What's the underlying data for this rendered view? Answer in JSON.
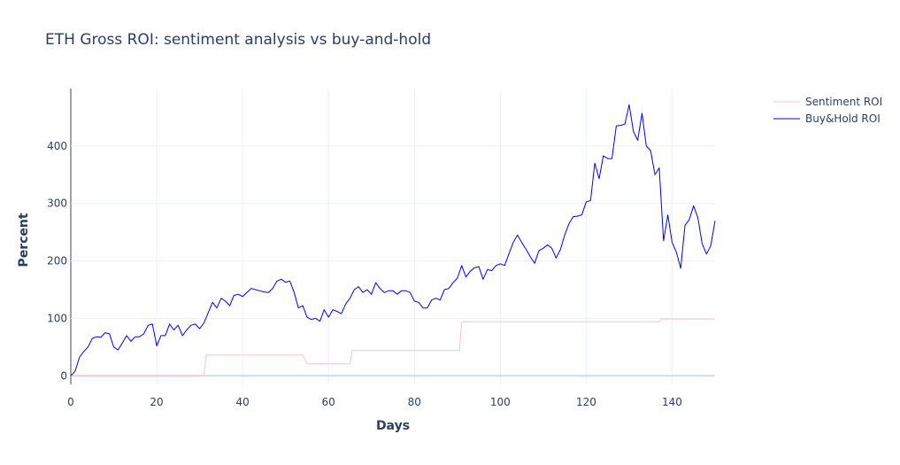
{
  "chart_data": {
    "type": "line",
    "title": "ETH Gross ROI: sentiment analysis vs buy-and-hold",
    "xlabel": "Days",
    "ylabel": "Percent",
    "xlim": [
      0,
      150
    ],
    "ylim": [
      -15,
      500
    ],
    "xticks": [
      "0",
      "20",
      "40",
      "60",
      "80",
      "100",
      "120",
      "140"
    ],
    "yticks": [
      "0",
      "100",
      "200",
      "300",
      "400"
    ],
    "grid": true,
    "legend_position": "top-right",
    "series": [
      {
        "name": "Sentiment ROI",
        "color": "#ffc0cb",
        "x": [
          0,
          31,
          31.5,
          54,
          55,
          65,
          65.5,
          90.5,
          91,
          137,
          137.5,
          150
        ],
        "y": [
          0,
          0,
          36,
          36,
          21,
          21,
          44,
          44,
          94,
          94,
          99,
          99
        ]
      },
      {
        "name": "Buy&Hold ROI",
        "color": "#0000ff",
        "x": [
          0,
          1,
          2,
          3,
          4,
          5,
          6,
          7,
          8,
          9,
          10,
          11,
          12,
          13,
          14,
          15,
          16,
          17,
          18,
          19,
          20,
          21,
          22,
          23,
          24,
          25,
          26,
          27,
          28,
          29,
          30,
          31,
          32,
          33,
          34,
          35,
          36,
          37,
          38,
          39,
          40,
          41,
          42,
          43,
          44,
          45,
          46,
          47,
          48,
          49,
          50,
          51,
          52,
          53,
          54,
          55,
          56,
          57,
          58,
          59,
          60,
          61,
          62,
          63,
          64,
          65,
          66,
          67,
          68,
          69,
          70,
          71,
          72,
          73,
          74,
          75,
          76,
          77,
          78,
          79,
          80,
          81,
          82,
          83,
          84,
          85,
          86,
          87,
          88,
          89,
          90,
          91,
          92,
          93,
          94,
          95,
          96,
          97,
          98,
          99,
          100,
          101,
          102,
          103,
          104,
          105,
          106,
          107,
          108,
          109,
          110,
          111,
          112,
          113,
          114,
          115,
          116,
          117,
          118,
          119,
          120,
          121,
          122,
          123,
          124,
          125,
          126,
          127,
          128,
          129,
          130,
          131,
          132,
          133,
          134,
          135,
          136,
          137,
          138,
          139,
          140,
          141,
          142,
          143,
          144,
          145,
          146,
          147,
          148,
          149,
          150
        ],
        "y": [
          0,
          8,
          32,
          42,
          50,
          65,
          68,
          67,
          75,
          73,
          50,
          45,
          57,
          70,
          60,
          68,
          68,
          73,
          88,
          90,
          52,
          70,
          70,
          90,
          80,
          88,
          70,
          80,
          88,
          90,
          82,
          92,
          110,
          128,
          118,
          135,
          130,
          122,
          140,
          142,
          138,
          145,
          152,
          150,
          148,
          146,
          145,
          152,
          165,
          168,
          163,
          165,
          145,
          118,
          122,
          102,
          98,
          100,
          95,
          115,
          102,
          115,
          112,
          108,
          125,
          135,
          150,
          155,
          145,
          150,
          142,
          162,
          152,
          145,
          148,
          148,
          142,
          148,
          148,
          145,
          130,
          128,
          118,
          118,
          132,
          135,
          132,
          150,
          152,
          162,
          170,
          192,
          172,
          182,
          188,
          190,
          168,
          185,
          183,
          192,
          195,
          192,
          212,
          232,
          245,
          232,
          220,
          207,
          196,
          218,
          222,
          228,
          222,
          205,
          220,
          245,
          265,
          277,
          278,
          280,
          303,
          305,
          370,
          343,
          383,
          378,
          378,
          435,
          436,
          438,
          472,
          425,
          410,
          457,
          400,
          392,
          350,
          362,
          235,
          280,
          232,
          215,
          187,
          262,
          272,
          296,
          275,
          230,
          212,
          226,
          270
        ]
      }
    ]
  }
}
